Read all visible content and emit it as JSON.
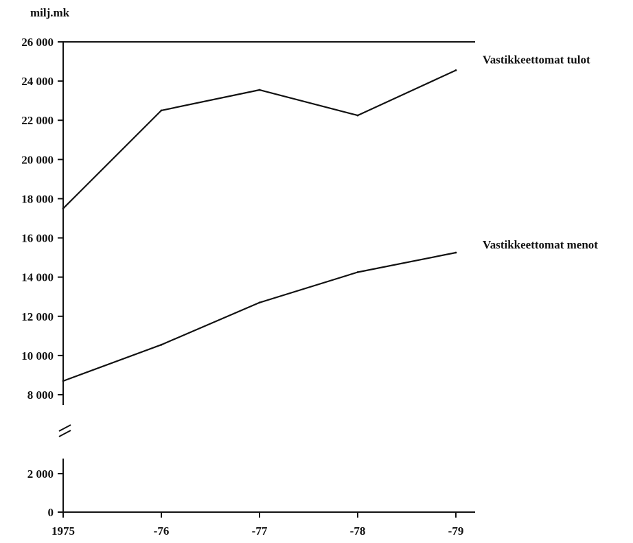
{
  "chart_data": {
    "type": "line",
    "unit_label": "milj.mk",
    "x": [
      "1975",
      "-76",
      "-77",
      "-78",
      "-79"
    ],
    "y_ticks_upper": [
      "26 000",
      "24 000",
      "22 000",
      "20 000",
      "18 000",
      "16 000",
      "14 000",
      "12 000",
      "10 000",
      "8 000"
    ],
    "y_ticks_lower": [
      "2 000",
      "0"
    ],
    "y_break": true,
    "ylim_upper": [
      8000,
      26000
    ],
    "ylim_lower": [
      0,
      2000
    ],
    "series": [
      {
        "name": "Vastikkeettomat tulot",
        "values": [
          17500,
          22500,
          23550,
          22250,
          24550
        ]
      },
      {
        "name": "Vastikkeettomat menot",
        "values": [
          8700,
          10550,
          12700,
          14250,
          15250
        ]
      }
    ],
    "grid": false,
    "legend": "inline at right end of each line"
  }
}
